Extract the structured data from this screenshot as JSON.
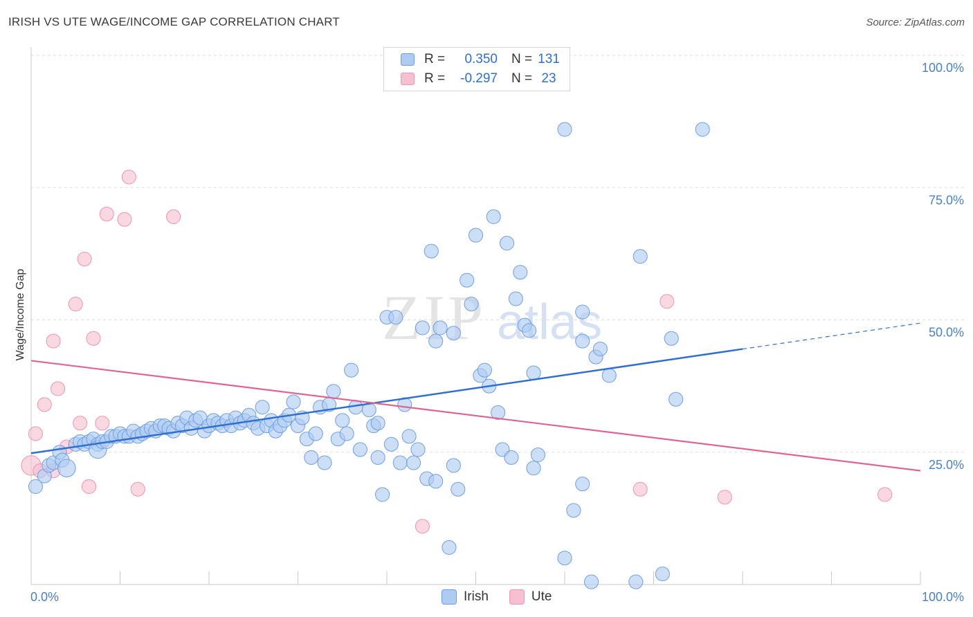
{
  "header": {
    "title": "IRISH VS UTE WAGE/INCOME GAP CORRELATION CHART",
    "source": "Source: ZipAtlas.com"
  },
  "legend": {
    "irish": {
      "r_label": "R =",
      "r_value": "0.350",
      "n_label": "N =",
      "n_value": "131"
    },
    "ute": {
      "r_label": "R =",
      "r_value": "-0.297",
      "n_label": "N =",
      "n_value": "23"
    }
  },
  "bottom_legend": {
    "irish": "Irish",
    "ute": "Ute"
  },
  "colors": {
    "irish_fill": "#aecbf2",
    "irish_stroke": "#6f9ee0",
    "irish_line": "#2f6fd0",
    "ute_fill": "#f7c0d0",
    "ute_stroke": "#ec94b0",
    "ute_line": "#e0648f",
    "tick": "#4a7fc9",
    "grid": "#dddddd"
  },
  "watermark": {
    "zip": "ZIP",
    "atlas": "atlas"
  },
  "chart_data": {
    "type": "scatter",
    "title": "IRISH VS UTE WAGE/INCOME GAP CORRELATION CHART",
    "ylabel": "Wage/Income Gap",
    "xlabel": "",
    "xlim": [
      0,
      100
    ],
    "ylim": [
      0,
      100
    ],
    "x_tick_labels": [
      "0.0%",
      "100.0%"
    ],
    "y_tick_labels": [
      "100.0%",
      "75.0%",
      "50.0%",
      "25.0%"
    ],
    "y_ticks": [
      100,
      75,
      50,
      25
    ],
    "grid": true,
    "legend_position": "top-center",
    "series": [
      {
        "name": "Irish",
        "trend": {
          "x": [
            0,
            80
          ],
          "y": [
            24.8,
            44.5
          ],
          "dashed_extension_to": [
            100,
            49.4
          ]
        },
        "points": [
          [
            0.5,
            18.5,
            3
          ],
          [
            1.5,
            20.5,
            3
          ],
          [
            2,
            22.5,
            3
          ],
          [
            2.5,
            23,
            3
          ],
          [
            3.2,
            25,
            3
          ],
          [
            3.5,
            23.5,
            3
          ],
          [
            4,
            22,
            5
          ],
          [
            5,
            26.5,
            3
          ],
          [
            5.5,
            27,
            3
          ],
          [
            6,
            26.5,
            3
          ],
          [
            6.5,
            27,
            3
          ],
          [
            7,
            27.5,
            3
          ],
          [
            7.5,
            26.5,
            3
          ],
          [
            7.5,
            25.5,
            5
          ],
          [
            8,
            27,
            3
          ],
          [
            8.5,
            27,
            3
          ],
          [
            9,
            28,
            3
          ],
          [
            9.5,
            28,
            3
          ],
          [
            10,
            28.5,
            3
          ],
          [
            10.5,
            28,
            3
          ],
          [
            11,
            28,
            3
          ],
          [
            11.5,
            29,
            3
          ],
          [
            12,
            28,
            3
          ],
          [
            12.5,
            28.5,
            3
          ],
          [
            13,
            29,
            3
          ],
          [
            13.5,
            29.5,
            3
          ],
          [
            14,
            29,
            3
          ],
          [
            14.5,
            30,
            3
          ],
          [
            15,
            30,
            3
          ],
          [
            15.5,
            29.5,
            3
          ],
          [
            16,
            29,
            3
          ],
          [
            16.5,
            30.5,
            3
          ],
          [
            17,
            30,
            3
          ],
          [
            17.5,
            31.5,
            3
          ],
          [
            18,
            29.5,
            3
          ],
          [
            18.5,
            31,
            3
          ],
          [
            19,
            31.5,
            3
          ],
          [
            19.5,
            29,
            3
          ],
          [
            20,
            30,
            3
          ],
          [
            20.5,
            31,
            3
          ],
          [
            21,
            30.5,
            3
          ],
          [
            21.5,
            30,
            3
          ],
          [
            22,
            31,
            3
          ],
          [
            22.5,
            30,
            3
          ],
          [
            23,
            31.5,
            3
          ],
          [
            23.5,
            30.5,
            3
          ],
          [
            24,
            31,
            3
          ],
          [
            24.5,
            32,
            3
          ],
          [
            25,
            30.5,
            3
          ],
          [
            25.5,
            29.5,
            3
          ],
          [
            26,
            33.5,
            3
          ],
          [
            26.5,
            30,
            3
          ],
          [
            27,
            31,
            3
          ],
          [
            27.5,
            29,
            3
          ],
          [
            28,
            30,
            3
          ],
          [
            28.5,
            31,
            3
          ],
          [
            29,
            32,
            3
          ],
          [
            29.5,
            34.5,
            3
          ],
          [
            30,
            30,
            3
          ],
          [
            30.5,
            31.5,
            3
          ],
          [
            31,
            27.5,
            3
          ],
          [
            31.5,
            24,
            3
          ],
          [
            32,
            28.5,
            3
          ],
          [
            32.5,
            33.5,
            3
          ],
          [
            33,
            23,
            3
          ],
          [
            33.5,
            34,
            3
          ],
          [
            34,
            36.5,
            3
          ],
          [
            34.5,
            27.5,
            3
          ],
          [
            35,
            31,
            3
          ],
          [
            35.5,
            28.5,
            3
          ],
          [
            36,
            40.5,
            3
          ],
          [
            36.5,
            33.5,
            3
          ],
          [
            37,
            25.5,
            3
          ],
          [
            38,
            33,
            3
          ],
          [
            38.5,
            30,
            3
          ],
          [
            39,
            24,
            3
          ],
          [
            39,
            30.5,
            3
          ],
          [
            39.5,
            17,
            3
          ],
          [
            40,
            50.5,
            3
          ],
          [
            40.5,
            26.5,
            3
          ],
          [
            41,
            50.5,
            3
          ],
          [
            41.5,
            23,
            3
          ],
          [
            42,
            34,
            3
          ],
          [
            42.5,
            28,
            3
          ],
          [
            43,
            23,
            3
          ],
          [
            43.5,
            25.5,
            3
          ],
          [
            44,
            48.5,
            3
          ],
          [
            44.5,
            20,
            3
          ],
          [
            45,
            63,
            3
          ],
          [
            45.5,
            46,
            3
          ],
          [
            45.5,
            19.5,
            3
          ],
          [
            46,
            48.5,
            3
          ],
          [
            47,
            7,
            3
          ],
          [
            47.5,
            22.5,
            3
          ],
          [
            47.5,
            47.5,
            3
          ],
          [
            48,
            18,
            3
          ],
          [
            49,
            57.5,
            3
          ],
          [
            49.5,
            53,
            3
          ],
          [
            50,
            66,
            3
          ],
          [
            50.5,
            39.5,
            3
          ],
          [
            51,
            40.5,
            3
          ],
          [
            51.5,
            37.5,
            3
          ],
          [
            52,
            69.5,
            3
          ],
          [
            52.5,
            32.5,
            3
          ],
          [
            53,
            25.5,
            3
          ],
          [
            53.5,
            64.5,
            3
          ],
          [
            54,
            24,
            3
          ],
          [
            54.5,
            54,
            3
          ],
          [
            55,
            59,
            3
          ],
          [
            55.5,
            49,
            3
          ],
          [
            56,
            48,
            3
          ],
          [
            56.5,
            40,
            3
          ],
          [
            56.5,
            22,
            3
          ],
          [
            57,
            24.5,
            3
          ],
          [
            60,
            86,
            3
          ],
          [
            60,
            5,
            3
          ],
          [
            61,
            14,
            3
          ],
          [
            62,
            46,
            3
          ],
          [
            62,
            19,
            3
          ],
          [
            62,
            51.5,
            3
          ],
          [
            63.5,
            43,
            3
          ],
          [
            64,
            44.5,
            3
          ],
          [
            63,
            0.5,
            3
          ],
          [
            65,
            39.5,
            3
          ],
          [
            68,
            0.5,
            3
          ],
          [
            68.5,
            62,
            3
          ],
          [
            71,
            2,
            3
          ],
          [
            72,
            46.5,
            3
          ],
          [
            72.5,
            35,
            3
          ],
          [
            75.5,
            86,
            3
          ]
        ]
      },
      {
        "name": "Ute",
        "trend": {
          "x": [
            0,
            100
          ],
          "y": [
            42.3,
            21.5
          ]
        },
        "points": [
          [
            0,
            22.5,
            6
          ],
          [
            0.5,
            28.5,
            3
          ],
          [
            1,
            21.5,
            3
          ],
          [
            1.5,
            34,
            3
          ],
          [
            2.5,
            46,
            3
          ],
          [
            2.5,
            21.5,
            3
          ],
          [
            3,
            37,
            3
          ],
          [
            4,
            26,
            3
          ],
          [
            5,
            53,
            3
          ],
          [
            5.5,
            30.5,
            3
          ],
          [
            6,
            61.5,
            3
          ],
          [
            6.5,
            18.5,
            3
          ],
          [
            7,
            46.5,
            3
          ],
          [
            8,
            30.5,
            3
          ],
          [
            8.5,
            70,
            3
          ],
          [
            10.5,
            69,
            3
          ],
          [
            11,
            77,
            3
          ],
          [
            12,
            18,
            3
          ],
          [
            16,
            69.5,
            3
          ],
          [
            44,
            11,
            3
          ],
          [
            68.5,
            18,
            3
          ],
          [
            71.5,
            53.5,
            3
          ],
          [
            78,
            16.5,
            3
          ],
          [
            96,
            17,
            3
          ]
        ]
      }
    ]
  }
}
